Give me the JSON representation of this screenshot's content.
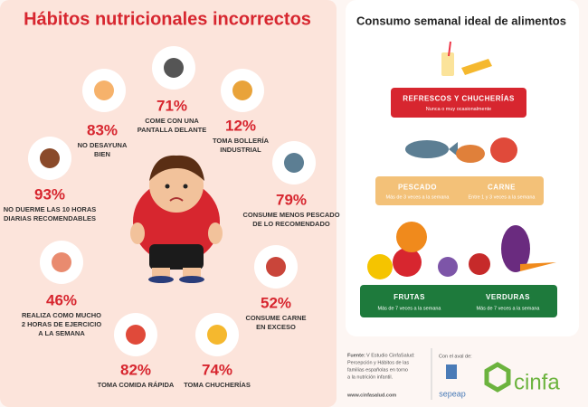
{
  "left": {
    "title": "Hábitos nutricionales incorrectos",
    "items": [
      {
        "value": "83%",
        "label": [
          "NO DESAYUNA",
          "BIEN"
        ]
      },
      {
        "value": "71%",
        "label": [
          "COME CON UNA",
          "PANTALLA DELANTE"
        ]
      },
      {
        "value": "12%",
        "label": [
          "TOMA BOLLERÍA",
          "INDUSTRIAL"
        ]
      },
      {
        "value": "79%",
        "label": [
          "CONSUME MENOS PESCADO",
          "DE LO RECOMENDADO"
        ]
      },
      {
        "value": "52%",
        "label": [
          "CONSUME CARNE",
          "EN EXCESO"
        ]
      },
      {
        "value": "74%",
        "label": [
          "TOMA  CHUCHERÍAS"
        ]
      },
      {
        "value": "82%",
        "label": [
          "TOMA  COMIDA RÁPIDA"
        ]
      },
      {
        "value": "46%",
        "label": [
          "REALIZA COMO MUCHO",
          "2 HORAS DE EJERCICIO",
          "A LA SEMANA"
        ]
      },
      {
        "value": "93%",
        "label": [
          "NO DUERME LAS 10 HORAS",
          "DIARIAS RECOMENDABLES"
        ]
      }
    ]
  },
  "right": {
    "title": "Consumo semanal ideal de alimentos",
    "tiers": [
      {
        "color": "#d7262f",
        "groups": [
          {
            "name": "REFRESCOS Y CHUCHERÍAS",
            "freq": "Nunca o muy ocasionalmente"
          }
        ]
      },
      {
        "color": "#f3c178",
        "groups": [
          {
            "name": "PESCADO",
            "freq": "Más de 3 veces a la semana"
          },
          {
            "name": "CARNE",
            "freq": "Entre 1 y 3 veces a la semana"
          }
        ]
      },
      {
        "color": "#1e7a3c",
        "groups": [
          {
            "name": "FRUTAS",
            "freq": "Más de 7 veces a la semana"
          },
          {
            "name": "VERDURAS",
            "freq": "Más de 7 veces a la semana"
          }
        ]
      }
    ]
  },
  "footer": {
    "source_label": "Fuente:",
    "source": [
      "V Estudio CinfaSalud:",
      "Percepción y Hábitos de las",
      "familias españolas en torno",
      "a la nutrición infantil."
    ],
    "url": "www.cinfasalud.com",
    "endorsement": "Con el aval de:",
    "endorser": "sepeap",
    "brand": "cinfa"
  }
}
